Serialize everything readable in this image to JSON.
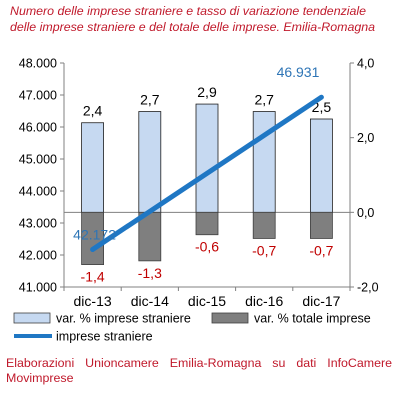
{
  "title": {
    "line1": "Numero delle imprese straniere e tasso di variazione tendenziale",
    "line2": "delle imprese straniere e del totale delle imprese. Emilia-Romagna"
  },
  "source": {
    "line1": "Elaborazioni Unioncamere Emilia-Romagna su dati InfoCamere",
    "line2": "Movimprese"
  },
  "chart_data": {
    "type": "bar+line",
    "categories": [
      "dic-13",
      "dic-14",
      "dic-15",
      "dic-16",
      "dic-17"
    ],
    "series": [
      {
        "name": "var. % imprese straniere",
        "kind": "bar",
        "axis": "right",
        "values": [
          2.4,
          2.7,
          2.9,
          2.7,
          2.5
        ],
        "labels": [
          "2,4",
          "2,7",
          "2,9",
          "2,7",
          "2,5"
        ],
        "color": "#c6d9f1"
      },
      {
        "name": "var. % totale imprese",
        "kind": "bar",
        "axis": "right",
        "values": [
          -1.4,
          -1.3,
          -0.6,
          -0.7,
          -0.7
        ],
        "labels": [
          "-1,4",
          "-1,3",
          "-0,6",
          "-0,7",
          "-0,7"
        ],
        "color": "#7f7f7f"
      },
      {
        "name": "imprese straniere",
        "kind": "line",
        "axis": "left",
        "values": [
          42172,
          null,
          null,
          null,
          46931
        ],
        "labels": [
          "42.172",
          "",
          "",
          "",
          "46.931"
        ],
        "color": "#1f77c4"
      }
    ],
    "left_axis": {
      "min": 41000,
      "max": 48000,
      "step": 1000,
      "ticks": [
        "41.000",
        "42.000",
        "43.000",
        "44.000",
        "45.000",
        "46.000",
        "47.000",
        "48.000"
      ]
    },
    "right_axis": {
      "min": -2.0,
      "max": 4.0,
      "step": 2.0,
      "ticks": [
        "-2,0",
        "0,0",
        "2,0",
        "4,0"
      ]
    },
    "legend": "bottom",
    "grid": false,
    "colors": {
      "text_accent": "#c0192b",
      "negative_label": "#c00000",
      "line_label": "#2e75b6"
    }
  }
}
